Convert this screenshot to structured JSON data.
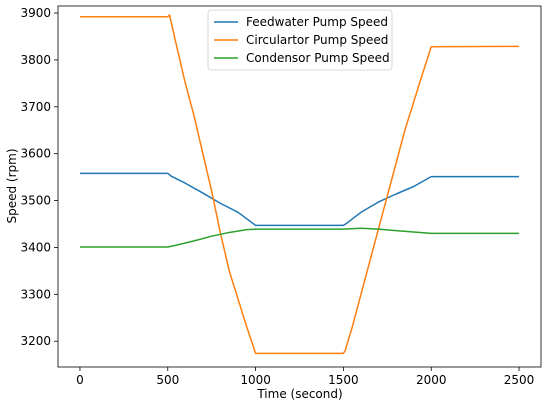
{
  "chart_data": {
    "type": "line",
    "title": "",
    "xlabel": "Time (second)",
    "ylabel": "Speed (rpm)",
    "xlim": [
      -125,
      2625
    ],
    "ylim": [
      3145,
      3915
    ],
    "xticks": [
      0,
      500,
      1000,
      1500,
      2000,
      2500
    ],
    "yticks": [
      3200,
      3300,
      3400,
      3500,
      3600,
      3700,
      3800,
      3900
    ],
    "grid": false,
    "legend_position": "top-center",
    "series": [
      {
        "name": "Feedwater Pump Speed",
        "color": "#1f77b4",
        "points": [
          [
            0,
            3558
          ],
          [
            500,
            3558
          ],
          [
            520,
            3552
          ],
          [
            600,
            3537
          ],
          [
            700,
            3516
          ],
          [
            800,
            3494
          ],
          [
            900,
            3475
          ],
          [
            1000,
            3447
          ],
          [
            1500,
            3447
          ],
          [
            1520,
            3452
          ],
          [
            1600,
            3475
          ],
          [
            1700,
            3497
          ],
          [
            1800,
            3514
          ],
          [
            1900,
            3530
          ],
          [
            2000,
            3551
          ],
          [
            2500,
            3551
          ]
        ]
      },
      {
        "name": "Circulartor Pump Speed",
        "color": "#ff7f0e",
        "points": [
          [
            0,
            3892
          ],
          [
            500,
            3892
          ],
          [
            510,
            3896
          ],
          [
            550,
            3830
          ],
          [
            600,
            3750
          ],
          [
            650,
            3680
          ],
          [
            700,
            3600
          ],
          [
            750,
            3520
          ],
          [
            800,
            3430
          ],
          [
            850,
            3350
          ],
          [
            900,
            3290
          ],
          [
            950,
            3230
          ],
          [
            1000,
            3174
          ],
          [
            1500,
            3174
          ],
          [
            1510,
            3180
          ],
          [
            1550,
            3230
          ],
          [
            1600,
            3300
          ],
          [
            1650,
            3370
          ],
          [
            1700,
            3440
          ],
          [
            1750,
            3510
          ],
          [
            1800,
            3580
          ],
          [
            1850,
            3650
          ],
          [
            1900,
            3710
          ],
          [
            1950,
            3770
          ],
          [
            2000,
            3828
          ],
          [
            2500,
            3829
          ]
        ]
      },
      {
        "name": "Condensor Pump Speed",
        "color": "#2ca02c",
        "points": [
          [
            0,
            3401
          ],
          [
            500,
            3401
          ],
          [
            550,
            3405
          ],
          [
            650,
            3414
          ],
          [
            750,
            3424
          ],
          [
            850,
            3432
          ],
          [
            950,
            3438
          ],
          [
            1000,
            3439
          ],
          [
            1500,
            3439
          ],
          [
            1600,
            3441
          ],
          [
            1700,
            3439
          ],
          [
            1800,
            3436
          ],
          [
            1900,
            3433
          ],
          [
            2000,
            3430
          ],
          [
            2500,
            3430
          ]
        ]
      }
    ]
  }
}
